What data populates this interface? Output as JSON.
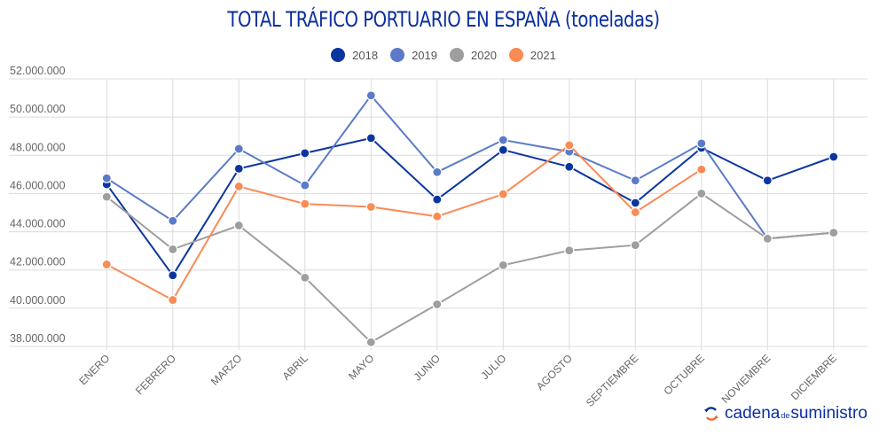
{
  "chart_data": {
    "type": "line",
    "title": "TOTAL TRÁFICO PORTUARIO EN ESPAÑA (toneladas)",
    "xlabel": "",
    "ylabel": "",
    "categories": [
      "ENERO",
      "FEBRERO",
      "MARZO",
      "ABRIL",
      "MAYO",
      "JUNIO",
      "JULIO",
      "AGOSTO",
      "SEPTIEMBRE",
      "OCTUBRE",
      "NOVIEMBRE",
      "DICIEMBRE"
    ],
    "ylim": [
      38000000,
      52000000
    ],
    "yticks": [
      38000000,
      40000000,
      42000000,
      44000000,
      46000000,
      48000000,
      50000000,
      52000000
    ],
    "ytick_labels": [
      "38.000.000",
      "40.000.000",
      "42.000.000",
      "44.000.000",
      "46.000.000",
      "48.000.000",
      "50.000.000",
      "52.000.000"
    ],
    "grid": true,
    "legend_position": "top-center",
    "series": [
      {
        "name": "2018",
        "color": "#0B36A0",
        "values": [
          46480000,
          41720000,
          47300000,
          48110000,
          48900000,
          45690000,
          48280000,
          47400000,
          45510000,
          48390000,
          46680000,
          47920000
        ]
      },
      {
        "name": "2019",
        "color": "#5B7BC8",
        "values": [
          46800000,
          44570000,
          48340000,
          46430000,
          51130000,
          47120000,
          48800000,
          48190000,
          46680000,
          48620000,
          43640000,
          43950000
        ]
      },
      {
        "name": "2020",
        "color": "#9E9E9E",
        "values": [
          45830000,
          43080000,
          44330000,
          41600000,
          38220000,
          40200000,
          42250000,
          43020000,
          43300000,
          46000000,
          43640000,
          43950000
        ]
      },
      {
        "name": "2021",
        "color": "#F98B55",
        "values": [
          42290000,
          40430000,
          46370000,
          45460000,
          45300000,
          44800000,
          45970000,
          48530000,
          45020000,
          47260000,
          null,
          null
        ]
      }
    ]
  },
  "branding": {
    "logo_part1": "cadena",
    "logo_part2": "de",
    "logo_part3": "suministro",
    "logo_color": "#0B2F9F",
    "logo_accent": "#F26A2E"
  }
}
